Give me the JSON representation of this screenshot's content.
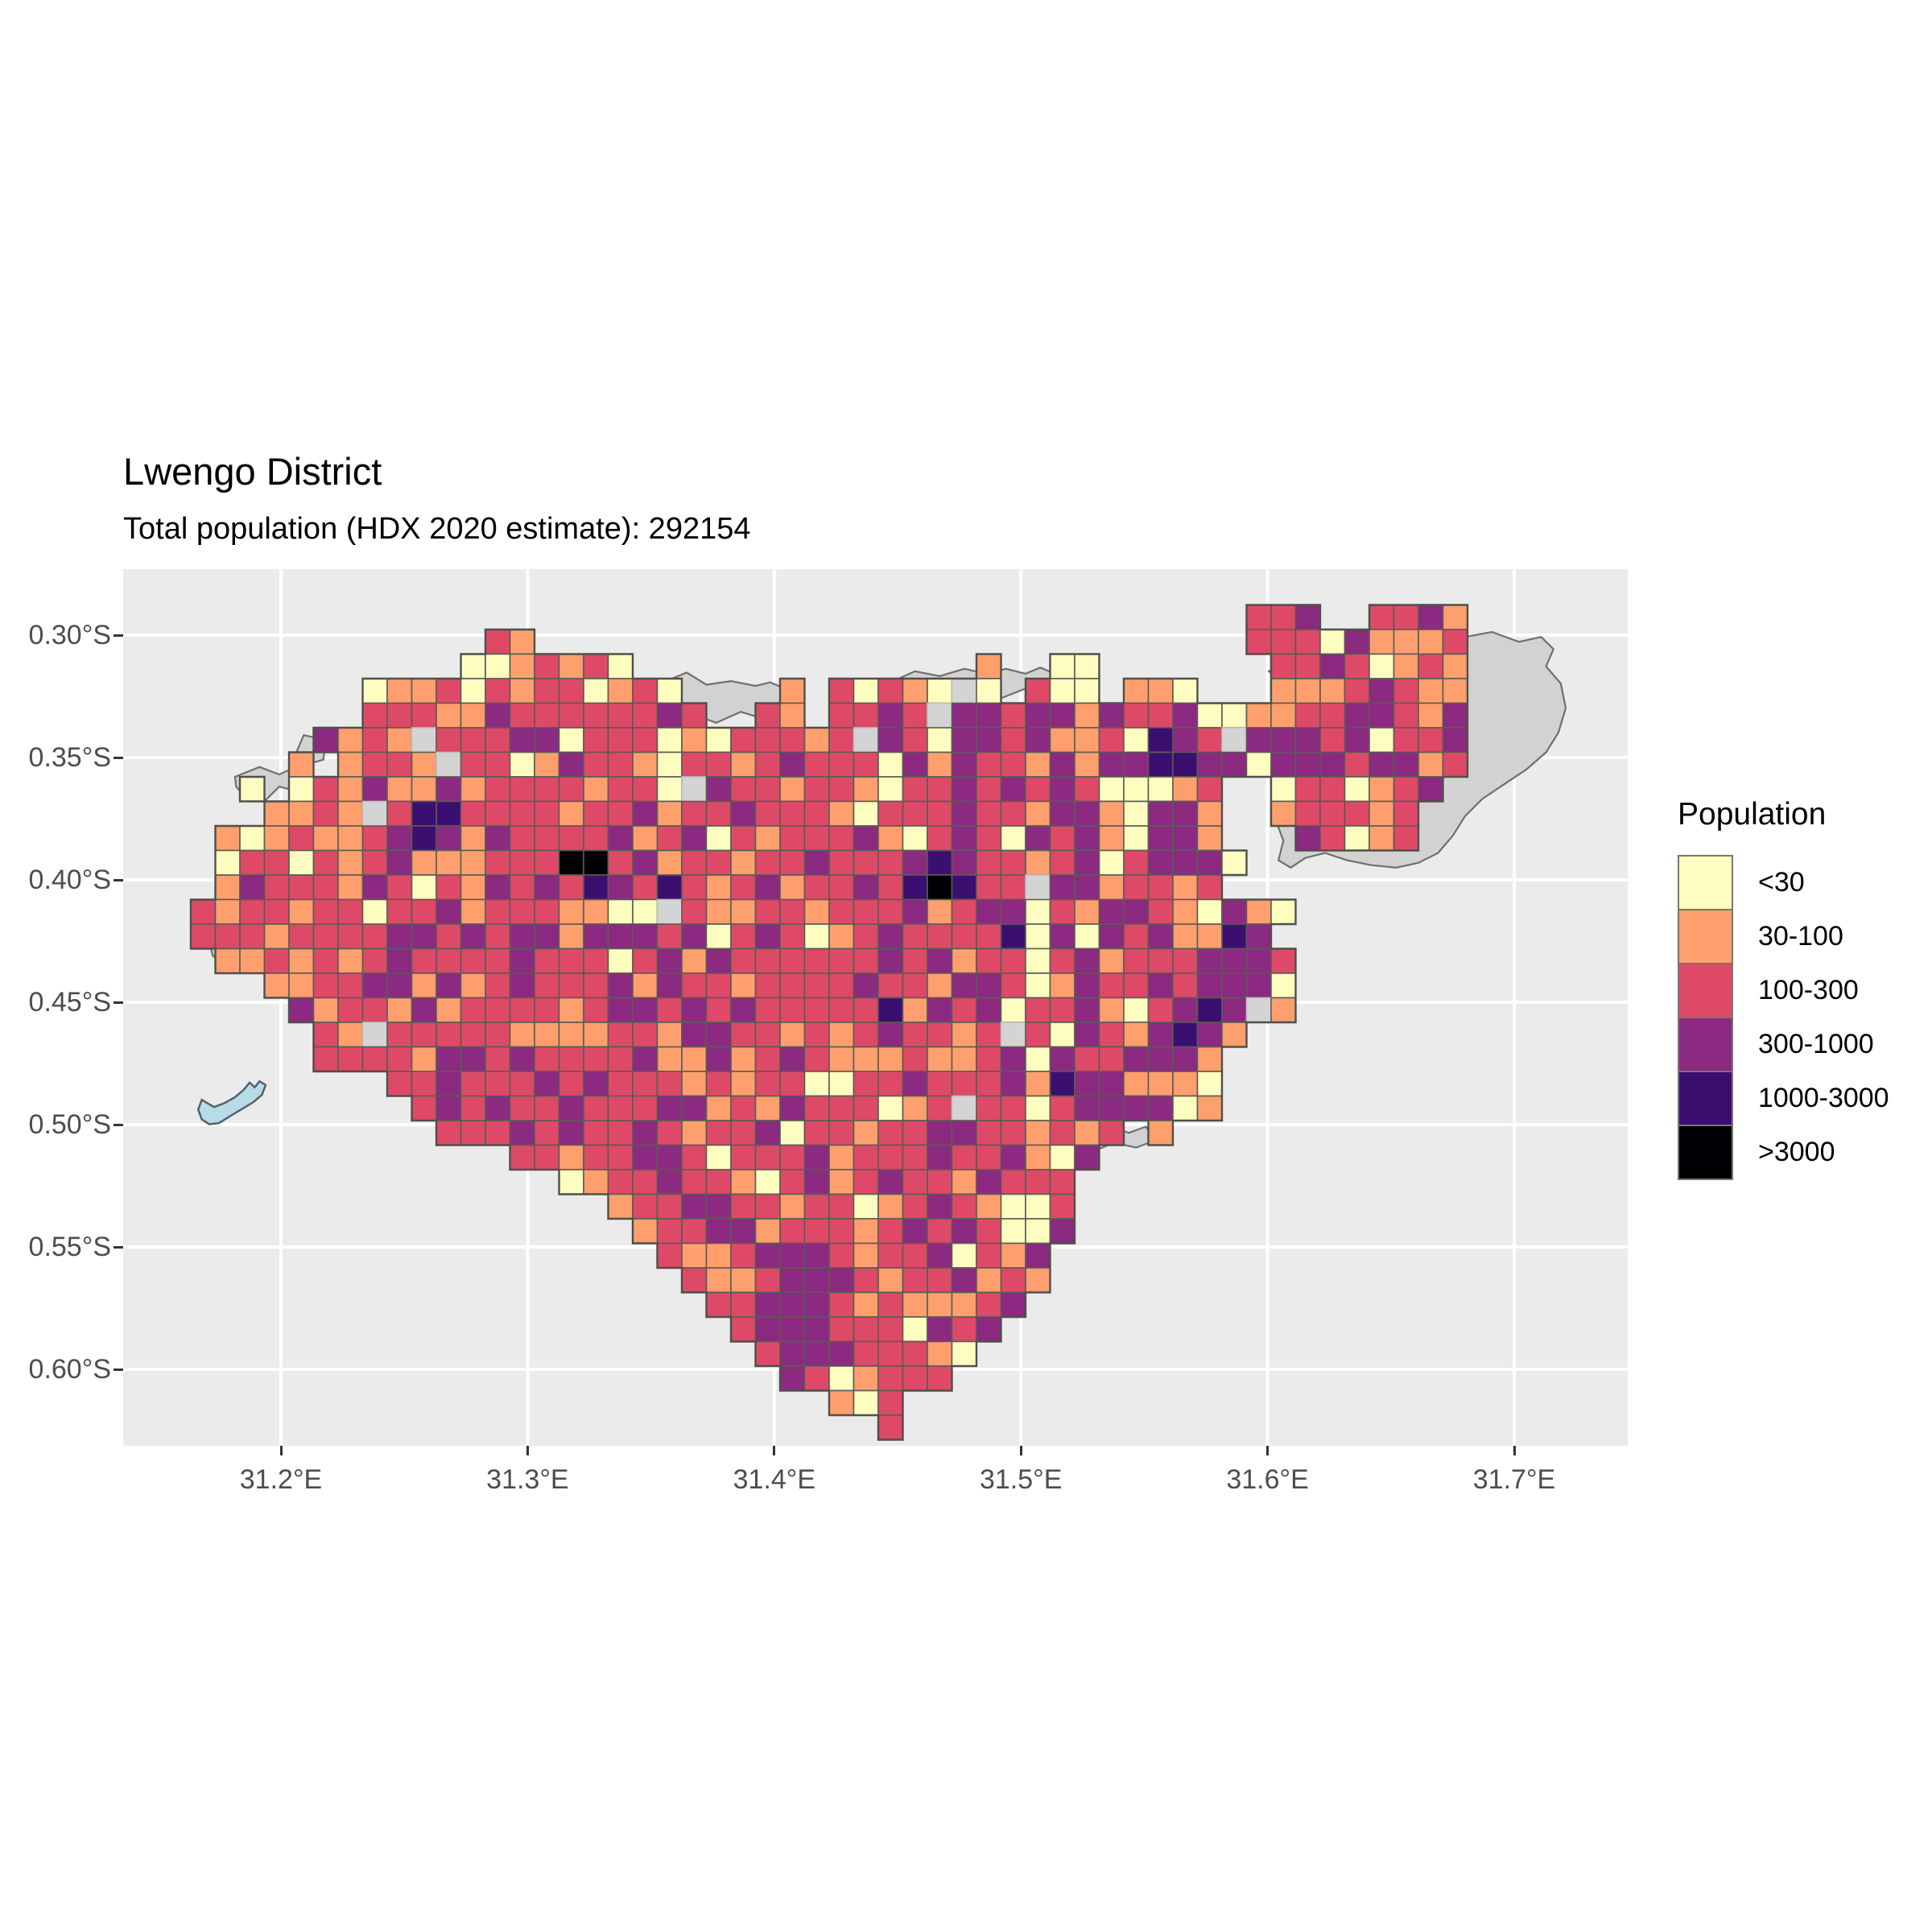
{
  "title": "Lwengo District",
  "subtitle": "Total population (HDX 2020 estimate): 292154",
  "axes": {
    "x": {
      "ticks": [
        "31.2°E",
        "31.3°E",
        "31.4°E",
        "31.5°E",
        "31.6°E",
        "31.7°E"
      ]
    },
    "y": {
      "ticks": [
        "0.30°S",
        "0.35°S",
        "0.40°S",
        "0.45°S",
        "0.50°S",
        "0.55°S",
        "0.60°S"
      ]
    }
  },
  "legend": {
    "title": "Population",
    "entries": [
      {
        "label": "<30",
        "color": "#FCFDBF"
      },
      {
        "label": "30-100",
        "color": "#FE9F6D"
      },
      {
        "label": "100-300",
        "color": "#DE4968"
      },
      {
        "label": "300-1000",
        "color": "#8C2981"
      },
      {
        "label": "1000-3000",
        "color": "#3B0F70"
      },
      {
        "label": ">3000",
        "color": "#000004"
      }
    ]
  },
  "chart_data": {
    "type": "heatmap",
    "title": "Lwengo District",
    "subtitle": "Total population (HDX 2020 estimate): 292154",
    "total_population": 292154,
    "legend_title": "Population",
    "bins": [
      "<30",
      "30-100",
      "100-300",
      "300-1000",
      "1000-3000",
      ">3000"
    ],
    "geo": {
      "lon_grid_origin": 31.164,
      "lat_grid_origin": 0.288,
      "cell_size_deg": 0.01,
      "lon_range": [
        31.136,
        31.748
      ],
      "lat_range": [
        0.273,
        0.631
      ]
    },
    "palette": {
      "1": "#FCFDBF",
      "2": "#FE9F6D",
      "3": "#DE4968",
      "4": "#8C2981",
      "5": "#3B0F70",
      "6": "#000004",
      "0": "#D4D4D4"
    },
    "panel_bg": "#EBEBEB",
    "gridline_color": "#FFFFFF",
    "cell_border": "#5B5B54",
    "district_border": "#4F4F4A",
    "district_fill": "#D2D2D2",
    "lake_fill": "#B7DCE8",
    "lake_border": "#55616B",
    "grid": [
      "...........................................334..3342.",
      "............32.............................333142223.",
      "...........1123231..............2..11.......33431232.",
      ".......1223132331231....2.3132101.311.221...22234322.",
      ".......33322433333343..32.33430443442433411223344324.",
      ".....42320333441333121333230431443422315430444341334.",
      "....2.2332033124332133234333142433242445544144434423.",
      "..1.13242242333323310433233213343434311123..1331234..",
      "...223203553333233423343332133343324421442..233323...",
      ".21232234542433334234132333421343143421442...43123...",
      ".133132342223336634233233433345433234134441..........",
      ".24333243132434354353234233435653304423323...........",
      "323323313342333221103223323334234413244321421........",
      "33323333443434424443413431234333351414342254.........",
      ".22323234333343331342433333343423313423334443........",
      "...223344242343334243323333433244312433434441........",
      "....42332423333234434343333352434133421345402........",
      ".....32033333222233244332323433230314324542..........",
      ".....3333244343333422423432223223414334442...........",
      "........3343334343332323311334333425442221...........",
      ".........343433433344232433312303313444412...........",
      "..........3334343343233413323344332323.2.............",
      ".............332334431333423334334214................",
      "...............123343321342343324333.................",
      ".................2334433233123432113.................",
      "..................233442333234343114.................",
      "...................3223444323341324..................",
      "....................322344432334232..................",
      ".....................3344432322234...................",
      "......................34443331434....................",
      ".......................344433321.....................",
      "........................4312333......................",
      "..........................213........................",
      "............................3........................"
    ],
    "district_extra_polygons": [
      [
        [
          43.9,
          2.7
        ],
        [
          44.8,
          2.3
        ],
        [
          45.8,
          2.5
        ],
        [
          47.0,
          2.2
        ],
        [
          48.2,
          2.4
        ],
        [
          49.6,
          2.1
        ],
        [
          50.8,
          2.3
        ],
        [
          51.3,
          1.6
        ],
        [
          51.9,
          1.3
        ],
        [
          53.0,
          1.1
        ],
        [
          54.1,
          1.5
        ],
        [
          55.0,
          1.3
        ],
        [
          55.5,
          1.8
        ],
        [
          55.2,
          2.5
        ],
        [
          55.8,
          3.2
        ],
        [
          56.0,
          4.2
        ],
        [
          55.7,
          5.2
        ],
        [
          55.2,
          6.0
        ],
        [
          54.4,
          6.7
        ],
        [
          53.5,
          7.3
        ],
        [
          52.6,
          7.9
        ],
        [
          51.9,
          8.6
        ],
        [
          51.4,
          9.4
        ],
        [
          50.8,
          10.1
        ],
        [
          50.0,
          10.5
        ],
        [
          49.1,
          10.7
        ],
        [
          48.1,
          10.6
        ],
        [
          47.1,
          10.4
        ],
        [
          46.2,
          10.1
        ],
        [
          45.4,
          10.3
        ],
        [
          44.8,
          10.7
        ],
        [
          44.3,
          10.4
        ],
        [
          44.5,
          9.6
        ],
        [
          44.2,
          8.8
        ],
        [
          44.6,
          8.0
        ],
        [
          44.3,
          7.2
        ],
        [
          44.7,
          6.4
        ],
        [
          44.4,
          5.6
        ],
        [
          44.8,
          4.8
        ],
        [
          44.5,
          4.0
        ],
        [
          44.9,
          3.4
        ],
        [
          44.3,
          3.0
        ]
      ],
      [
        [
          19.6,
          3.0
        ],
        [
          20.2,
          2.75
        ],
        [
          21.0,
          3.25
        ],
        [
          22.0,
          3.1
        ],
        [
          23.0,
          3.3
        ],
        [
          23.6,
          3.15
        ],
        [
          24.3,
          3.45
        ],
        [
          24.0,
          4.2
        ],
        [
          23.2,
          4.6
        ],
        [
          22.4,
          4.35
        ],
        [
          21.4,
          4.8
        ],
        [
          20.6,
          4.5
        ],
        [
          20.0,
          4.0
        ]
      ],
      [
        [
          28.6,
          3.1
        ],
        [
          29.5,
          2.7
        ],
        [
          30.5,
          2.9
        ],
        [
          31.5,
          2.6
        ],
        [
          32.4,
          2.8
        ],
        [
          33.2,
          2.6
        ],
        [
          34.0,
          2.8
        ],
        [
          34.6,
          2.55
        ],
        [
          35.2,
          2.8
        ],
        [
          35.0,
          3.6
        ],
        [
          34.0,
          3.4
        ],
        [
          33.0,
          3.8
        ],
        [
          32.0,
          3.6
        ],
        [
          31.0,
          4.0
        ],
        [
          30.0,
          3.8
        ],
        [
          29.2,
          3.6
        ]
      ],
      [
        [
          1.8,
          7.0
        ],
        [
          2.8,
          6.6
        ],
        [
          3.6,
          6.9
        ],
        [
          4.4,
          6.55
        ],
        [
          4.9,
          7.0
        ],
        [
          4.4,
          7.6
        ],
        [
          3.6,
          7.4
        ],
        [
          3.0,
          8.0
        ],
        [
          2.2,
          7.8
        ],
        [
          1.85,
          7.4
        ]
      ],
      [
        [
          0.8,
          13.9
        ],
        [
          1.6,
          14.15
        ],
        [
          2.4,
          14.05
        ],
        [
          3.1,
          14.5
        ],
        [
          2.4,
          14.9
        ],
        [
          1.4,
          14.6
        ],
        [
          0.9,
          14.3
        ]
      ],
      [
        [
          36.4,
          21.3
        ],
        [
          37.4,
          21.2
        ],
        [
          38.2,
          21.5
        ],
        [
          38.9,
          21.25
        ],
        [
          39.3,
          21.8
        ],
        [
          38.5,
          22.1
        ],
        [
          37.6,
          21.9
        ],
        [
          36.9,
          22.2
        ],
        [
          36.4,
          21.8
        ]
      ],
      [
        [
          4.6,
          5.3
        ],
        [
          5.5,
          5.5
        ],
        [
          5.4,
          6.3
        ],
        [
          4.7,
          6.5
        ],
        [
          4.3,
          6.0
        ]
      ]
    ],
    "lake_polygon": [
      [
        0.45,
        20.15
      ],
      [
        0.3,
        20.55
      ],
      [
        0.45,
        20.95
      ],
      [
        0.75,
        21.15
      ],
      [
        1.15,
        21.1
      ],
      [
        1.55,
        20.85
      ],
      [
        2.05,
        20.55
      ],
      [
        2.55,
        20.25
      ],
      [
        2.9,
        19.95
      ],
      [
        3.05,
        19.55
      ],
      [
        2.8,
        19.4
      ],
      [
        2.6,
        19.65
      ],
      [
        2.4,
        19.45
      ],
      [
        2.15,
        19.75
      ],
      [
        1.8,
        20.05
      ],
      [
        1.35,
        20.3
      ],
      [
        0.95,
        20.45
      ],
      [
        0.6,
        20.25
      ]
    ]
  }
}
